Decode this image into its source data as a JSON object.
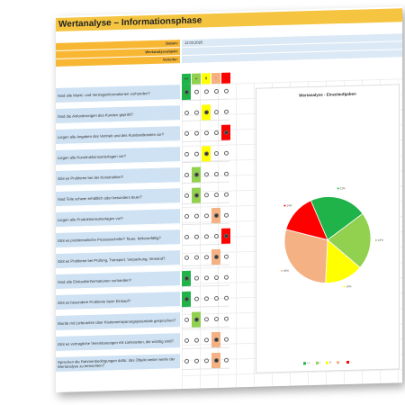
{
  "title": "Wertanalyse – Informationsphase",
  "meta": [
    {
      "label": "Datum:",
      "value": "12.03.2020"
    },
    {
      "label": "Wertanalyseobjekt:",
      "value": ""
    },
    {
      "label": "Verteiler:",
      "value": ""
    }
  ],
  "rating_headers": [
    "++",
    "+",
    "0",
    "-",
    "--"
  ],
  "colors": {
    "green_dark": "#1fb34a",
    "green_light": "#92d050",
    "yellow": "#ffff00",
    "orange": "#f4b183",
    "red": "#ff0000"
  },
  "questions": [
    {
      "text": "Sind alle Markt- und Vertragsinformationen vorhanden?",
      "sel": 0
    },
    {
      "text": "Sind die Anforderungen des Kunden geprüft?",
      "sel": 2
    },
    {
      "text": "Liegen alle Angaben des Vertrieb und des Kundendienstes vor?",
      "sel": 4
    },
    {
      "text": "Liegen alle Konstruktionsunterlagen vor?",
      "sel": 2
    },
    {
      "text": "Gibt es Probleme bei der Konstruktion?",
      "sel": 1
    },
    {
      "text": "Sind Teile schwer erhältlich oder besonders teuer?",
      "sel": 1
    },
    {
      "text": "Liegen alle Produktionsunterlagen vor?",
      "sel": 3
    },
    {
      "text": "Gibt es problematische Prozessschritte? Teuer, fehleranfällig?",
      "sel": 4
    },
    {
      "text": "Gibt es Probleme bei Prüfung, Transport, Verpackung, Versand?",
      "sel": 3
    },
    {
      "text": "Sind alle Einkaufsinformationen vorhanden?",
      "sel": 0
    },
    {
      "text": "Gibt es besondere Probleme beim Einkauf?",
      "sel": 0
    },
    {
      "text": "Wurde mit Lieferanten über Kosteneinsparungspotentiale gesprochen?",
      "sel": 1
    },
    {
      "text": "Gibt es vertragliche Vereinbarungen mit Lieferanten, die wichtig sind?",
      "sel": 3
    },
    {
      "text": "Sprechen die Rahmenbedingungen dafür, das Objekt weiter wertiv der Wertanalyse zu betrachten?",
      "sel": 3
    }
  ],
  "chart_data": {
    "type": "pie",
    "title": "Wertanalyse - Einzelaufgaben",
    "categories": [
      "++",
      "+",
      "0",
      "-",
      "--"
    ],
    "values": [
      3,
      3,
      2,
      4,
      2
    ],
    "labels": [
      "21%",
      "21%",
      "14%",
      "29%",
      "14%"
    ]
  }
}
